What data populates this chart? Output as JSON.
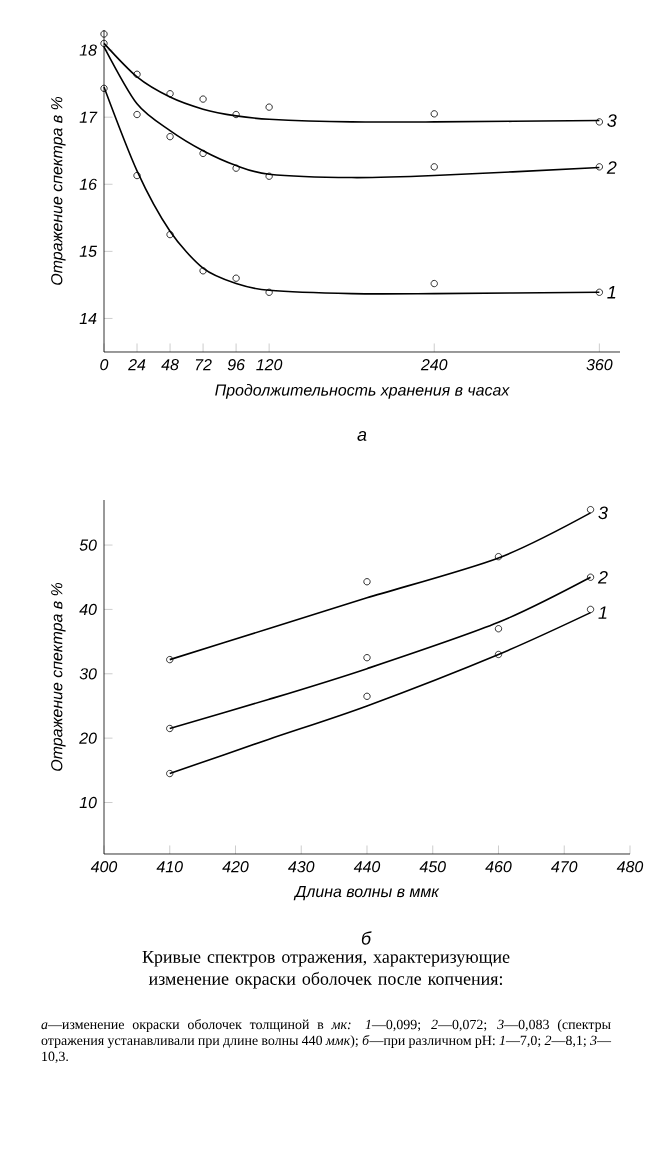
{
  "chart_data": [
    {
      "type": "line",
      "xlabel": "Продолжительность хранения в часах",
      "ylabel": "Отражение спектра в %",
      "annotations": [
        "а"
      ],
      "xlim": [
        0,
        375
      ],
      "ylim": [
        13.5,
        18.3
      ],
      "xticks": [
        0,
        24,
        48,
        72,
        96,
        120,
        240,
        360
      ],
      "yticks": [
        14,
        15,
        16,
        17,
        18
      ],
      "grid": false,
      "marker": "circle",
      "series": [
        {
          "name": "3",
          "marker": "none",
          "color": "#000000",
          "x": [
            0,
            24,
            48,
            72,
            96,
            120,
            180,
            240,
            360
          ],
          "values": [
            18.1,
            17.6,
            17.3,
            17.12,
            17.02,
            16.97,
            16.93,
            16.93,
            16.95
          ]
        },
        {
          "name": "2",
          "marker": "none",
          "color": "#000000",
          "x": [
            0,
            24,
            48,
            72,
            96,
            120,
            180,
            240,
            360
          ],
          "values": [
            18.05,
            17.2,
            16.8,
            16.5,
            16.28,
            16.15,
            16.1,
            16.13,
            16.25
          ]
        },
        {
          "name": "1",
          "marker": "none",
          "color": "#000000",
          "x": [
            0,
            24,
            48,
            72,
            96,
            120,
            180,
            240,
            360
          ],
          "values": [
            17.45,
            16.2,
            15.3,
            14.75,
            14.52,
            14.42,
            14.37,
            14.37,
            14.39
          ]
        },
        {
          "type": "scatter",
          "color": "#000000",
          "x": [
            0,
            24,
            48,
            72,
            96,
            120,
            240,
            360
          ],
          "values": [
            18.24,
            17.64,
            17.35,
            17.27,
            17.04,
            17.15,
            17.05,
            16.93
          ]
        },
        {
          "type": "scatter",
          "color": "#000000",
          "x": [
            0,
            24,
            48,
            72,
            96,
            120,
            240,
            360
          ],
          "values": [
            18.1,
            17.04,
            16.71,
            16.46,
            16.24,
            16.12,
            16.26,
            16.26
          ]
        },
        {
          "type": "scatter",
          "color": "#000000",
          "x": [
            0,
            24,
            48,
            72,
            96,
            120,
            240,
            360
          ],
          "values": [
            17.43,
            16.13,
            15.25,
            14.71,
            14.6,
            14.39,
            14.52,
            14.39
          ]
        }
      ]
    },
    {
      "type": "line",
      "xlabel": "Длина волны в ммк",
      "ylabel": "Отражение спектра в %",
      "annotations": [
        "б",
        "Кривые спектров отражения, характеризующие изменение окраски оболочек после копчения:",
        "*а*—изменение окраски оболочек толщиной в *мк:* *1*—0,099; *2*—0,072; *3*—0,083 (спектры отражения устанавливали при длине волны 440 *ммк*); *б*—при различном pH: *1*—7,0; *2*—8,1; *3*—10,3."
      ],
      "xlim": [
        400,
        480
      ],
      "ylim": [
        2,
        57
      ],
      "xticks": [
        400,
        410,
        420,
        430,
        440,
        450,
        460,
        470,
        480
      ],
      "yticks": [
        10,
        20,
        30,
        40,
        50
      ],
      "grid": false,
      "marker": "circle",
      "series": [
        {
          "name": "3",
          "marker": "none",
          "color": "#000000",
          "x": [
            410,
            425,
            440,
            460,
            474
          ],
          "values": [
            32.2,
            37,
            41.8,
            48,
            55
          ]
        },
        {
          "name": "2",
          "marker": "none",
          "color": "#000000",
          "x": [
            410,
            425,
            440,
            460,
            474
          ],
          "values": [
            21.5,
            26,
            30.8,
            38,
            45
          ]
        },
        {
          "name": "1",
          "marker": "none",
          "color": "#000000",
          "x": [
            410,
            425,
            440,
            460,
            474
          ],
          "values": [
            14.5,
            19.8,
            25,
            33,
            39.5
          ]
        },
        {
          "type": "scatter",
          "color": "#000000",
          "x": [
            410,
            440,
            460,
            474
          ],
          "values": [
            32.2,
            44.3,
            48.2,
            55.5
          ]
        },
        {
          "type": "scatter",
          "color": "#000000",
          "x": [
            410,
            440,
            460,
            474
          ],
          "values": [
            21.5,
            32.5,
            37,
            45
          ]
        },
        {
          "type": "scatter",
          "color": "#000000",
          "x": [
            410,
            440,
            460,
            474
          ],
          "values": [
            14.5,
            26.5,
            33,
            40
          ]
        }
      ]
    }
  ]
}
